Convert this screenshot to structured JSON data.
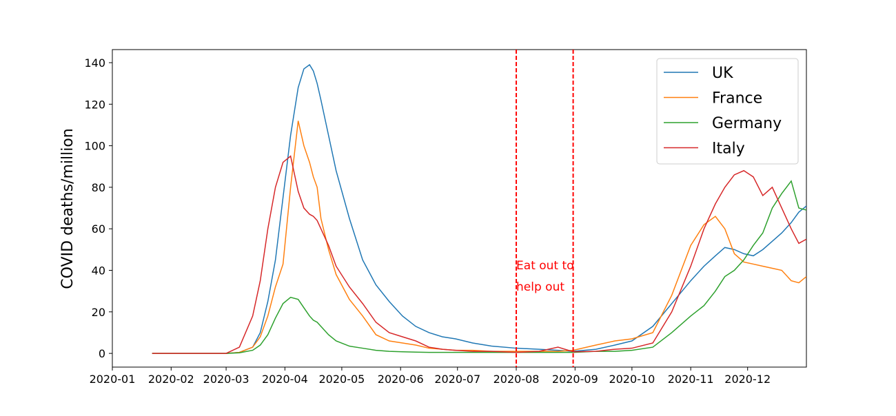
{
  "chart_data": {
    "type": "line",
    "ylabel": "COVID deaths/million",
    "x": [
      21,
      60,
      67,
      74,
      78,
      82,
      86,
      90,
      94,
      98,
      101,
      104,
      106,
      108,
      110,
      114,
      118,
      125,
      132,
      139,
      146,
      153,
      160,
      167,
      174,
      181,
      190,
      200,
      213,
      225,
      235,
      243,
      255,
      265,
      274,
      285,
      295,
      305,
      312,
      318,
      323,
      328,
      333,
      338,
      343,
      348,
      353,
      358,
      362,
      366
    ],
    "series": [
      {
        "name": "UK",
        "color": "#1f77b4",
        "values": [
          0,
          0,
          0.5,
          3,
          10,
          25,
          45,
          75,
          105,
          128,
          137,
          139,
          136,
          130,
          122,
          105,
          88,
          65,
          45,
          33,
          25,
          18,
          13,
          10,
          8,
          7,
          5,
          3.5,
          2.5,
          2,
          1.5,
          1,
          2,
          4,
          6,
          13,
          24,
          35,
          42,
          47,
          51,
          50,
          48,
          47,
          50,
          54,
          58,
          63,
          68,
          71
        ]
      },
      {
        "name": "France",
        "color": "#ff7f0e",
        "values": [
          0,
          0,
          0.5,
          3,
          8,
          18,
          32,
          43,
          80,
          112,
          100,
          92,
          85,
          80,
          65,
          50,
          38,
          26,
          18,
          9,
          6,
          5,
          4,
          2.5,
          2,
          1.5,
          1.5,
          1,
          1,
          1,
          1,
          1.5,
          4,
          6,
          7,
          10,
          28,
          52,
          62,
          66,
          60,
          48,
          44,
          43,
          42,
          41,
          40,
          35,
          34,
          37
        ]
      },
      {
        "name": "Germany",
        "color": "#2ca02c",
        "values": [
          0,
          0,
          0.3,
          1.5,
          4,
          9,
          17,
          24,
          27,
          26,
          22,
          18,
          16,
          15,
          13,
          9,
          6,
          3.5,
          2.5,
          1.5,
          1,
          0.8,
          0.6,
          0.5,
          0.5,
          0.5,
          0.5,
          0.5,
          0.5,
          0.5,
          0.5,
          0.5,
          1,
          1,
          1.5,
          3,
          10,
          18,
          23,
          30,
          37,
          40,
          45,
          52,
          58,
          70,
          77,
          83,
          70,
          69
        ]
      },
      {
        "name": "Italy",
        "color": "#d62728",
        "values": [
          0,
          0,
          3,
          18,
          35,
          60,
          80,
          92,
          95,
          78,
          70,
          67,
          66,
          64,
          60,
          52,
          42,
          32,
          24,
          15,
          10,
          8,
          6,
          3,
          2,
          1.5,
          1,
          1,
          0.5,
          1,
          3,
          0.8,
          1,
          2,
          2.5,
          5,
          20,
          42,
          60,
          72,
          80,
          86,
          88,
          85,
          76,
          80,
          70,
          60,
          53,
          55
        ]
      }
    ],
    "xlim": [
      0,
      366
    ],
    "xticks": [
      {
        "value": 0,
        "label": "2020-01"
      },
      {
        "value": 31,
        "label": "2020-02"
      },
      {
        "value": 60,
        "label": "2020-03"
      },
      {
        "value": 91,
        "label": "2020-04"
      },
      {
        "value": 121,
        "label": "2020-05"
      },
      {
        "value": 152,
        "label": "2020-06"
      },
      {
        "value": 182,
        "label": "2020-07"
      },
      {
        "value": 213,
        "label": "2020-08"
      },
      {
        "value": 244,
        "label": "2020-09"
      },
      {
        "value": 274,
        "label": "2020-10"
      },
      {
        "value": 305,
        "label": "2020-11"
      },
      {
        "value": 335,
        "label": "2020-12"
      }
    ],
    "ylim": [
      -6.6,
      146.3
    ],
    "yticks": [
      0,
      20,
      40,
      60,
      80,
      100,
      120,
      140
    ],
    "vlines": [
      213,
      243
    ],
    "vline_color": "#ff0000",
    "annotation": [
      "Eat out to",
      "help out"
    ],
    "legend": "upper right",
    "grid": false
  }
}
